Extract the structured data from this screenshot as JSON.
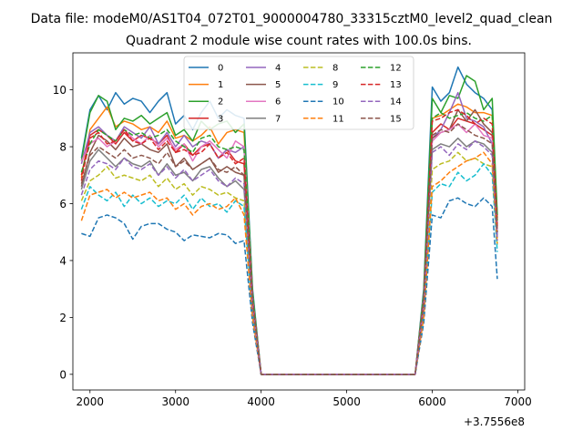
{
  "figure": {
    "suptitle": "Data file: modeM0/AS1T04_072T01_9000004780_33315cztM0_level2_quad_clean",
    "title": "Quadrant 2 module wise count rates with 100.0s bins.",
    "offset_label": "+3.7556e8"
  },
  "chart_data": {
    "type": "line",
    "title": "Quadrant 2 module wise count rates with 100.0s bins.",
    "xlabel": "",
    "ylabel": "",
    "x_offset": 375560000,
    "xlim": [
      1800,
      7080
    ],
    "ylim": [
      -0.55,
      11.3
    ],
    "xticks": [
      2000,
      3000,
      4000,
      5000,
      6000,
      7000
    ],
    "yticks": [
      0,
      2,
      4,
      6,
      8,
      10
    ],
    "grid": false,
    "legend": {
      "placement": "top-center",
      "ncol": 4
    },
    "x": [
      1900,
      2000,
      2100,
      2200,
      2300,
      2400,
      2500,
      2600,
      2700,
      2800,
      2900,
      3000,
      3100,
      3200,
      3300,
      3400,
      3500,
      3600,
      3700,
      3800,
      3900,
      4000,
      4100,
      4200,
      4300,
      4400,
      4500,
      4600,
      4700,
      4800,
      4900,
      5000,
      5100,
      5200,
      5300,
      5400,
      5500,
      5600,
      5700,
      5800,
      5900,
      6000,
      6100,
      6200,
      6300,
      6400,
      6500,
      6600,
      6700,
      6760
    ],
    "series": [
      {
        "name": "0",
        "color": "#1f77b4",
        "dash": "solid",
        "values": [
          7.6,
          9.3,
          9.8,
          9.3,
          9.9,
          9.5,
          9.7,
          9.6,
          9.2,
          9.6,
          9.9,
          8.8,
          9.1,
          8.6,
          9.2,
          9.6,
          9.0,
          9.3,
          9.1,
          9.0,
          3.0,
          0,
          0,
          0,
          0,
          0,
          0,
          0,
          0,
          0,
          0,
          0,
          0,
          0,
          0,
          0,
          0,
          0,
          0,
          0,
          3.0,
          10.1,
          9.6,
          9.9,
          10.8,
          10.2,
          9.9,
          9.7,
          9.3,
          5.5
        ]
      },
      {
        "name": "1",
        "color": "#ff7f0e",
        "dash": "solid",
        "values": [
          6.9,
          8.6,
          9.0,
          9.4,
          8.7,
          8.9,
          8.8,
          8.6,
          8.7,
          8.5,
          8.9,
          8.3,
          8.4,
          8.2,
          8.4,
          8.7,
          8.1,
          8.5,
          8.6,
          8.5,
          2.8,
          0,
          0,
          0,
          0,
          0,
          0,
          0,
          0,
          0,
          0,
          0,
          0,
          0,
          0,
          0,
          0,
          0,
          0,
          0,
          2.8,
          9.0,
          9.1,
          9.3,
          9.5,
          9.4,
          9.2,
          9.2,
          9.1,
          5.4
        ]
      },
      {
        "name": "2",
        "color": "#2ca02c",
        "dash": "solid",
        "values": [
          7.5,
          9.2,
          9.8,
          9.6,
          8.6,
          9.0,
          8.9,
          9.1,
          8.8,
          9.0,
          9.2,
          8.4,
          8.6,
          8.2,
          8.9,
          8.6,
          8.8,
          8.9,
          8.5,
          8.8,
          2.9,
          0,
          0,
          0,
          0,
          0,
          0,
          0,
          0,
          0,
          0,
          0,
          0,
          0,
          0,
          0,
          0,
          0,
          0,
          0,
          2.9,
          9.7,
          9.2,
          9.8,
          9.7,
          10.5,
          10.3,
          9.3,
          9.7,
          5.6
        ]
      },
      {
        "name": "3",
        "color": "#d62728",
        "dash": "solid",
        "values": [
          7.0,
          8.4,
          8.6,
          8.4,
          8.1,
          8.5,
          8.2,
          8.4,
          8.3,
          8.1,
          8.4,
          7.8,
          8.1,
          7.7,
          8.0,
          8.1,
          7.6,
          7.9,
          7.5,
          7.4,
          2.6,
          0,
          0,
          0,
          0,
          0,
          0,
          0,
          0,
          0,
          0,
          0,
          0,
          0,
          0,
          0,
          0,
          0,
          0,
          0,
          2.6,
          8.5,
          8.8,
          8.6,
          9.0,
          8.9,
          8.8,
          8.6,
          8.4,
          5.1
        ]
      },
      {
        "name": "4",
        "color": "#9467bd",
        "dash": "solid",
        "values": [
          7.4,
          8.5,
          8.7,
          8.4,
          8.2,
          8.7,
          8.5,
          8.3,
          8.7,
          8.1,
          8.5,
          8.0,
          8.4,
          8.0,
          8.2,
          8.1,
          7.6,
          7.9,
          7.8,
          8.0,
          2.7,
          0,
          0,
          0,
          0,
          0,
          0,
          0,
          0,
          0,
          0,
          0,
          0,
          0,
          0,
          0,
          0,
          0,
          0,
          0,
          2.7,
          8.3,
          8.6,
          9.2,
          9.9,
          9.0,
          8.9,
          8.7,
          8.1,
          4.9
        ]
      },
      {
        "name": "5",
        "color": "#8c564b",
        "dash": "solid",
        "values": [
          6.6,
          7.8,
          8.4,
          8.2,
          7.9,
          8.3,
          8.0,
          8.1,
          7.9,
          7.8,
          8.1,
          7.3,
          7.6,
          7.2,
          7.4,
          7.6,
          7.1,
          7.3,
          7.1,
          7.0,
          2.5,
          0,
          0,
          0,
          0,
          0,
          0,
          0,
          0,
          0,
          0,
          0,
          0,
          0,
          0,
          0,
          0,
          0,
          0,
          0,
          2.5,
          8.3,
          8.5,
          8.6,
          9.3,
          8.9,
          9.3,
          8.8,
          8.5,
          5.0
        ]
      },
      {
        "name": "6",
        "color": "#e377c2",
        "dash": "solid",
        "values": [
          7.5,
          8.1,
          8.3,
          8.0,
          8.2,
          8.6,
          8.3,
          8.1,
          8.4,
          8.0,
          8.3,
          7.9,
          8.1,
          7.5,
          8.0,
          8.2,
          7.9,
          7.6,
          8.2,
          8.0,
          2.7,
          0,
          0,
          0,
          0,
          0,
          0,
          0,
          0,
          0,
          0,
          0,
          0,
          0,
          0,
          0,
          0,
          0,
          0,
          0,
          2.7,
          8.2,
          8.5,
          8.6,
          8.8,
          8.5,
          8.8,
          8.4,
          8.3,
          5.0
        ]
      },
      {
        "name": "7",
        "color": "#7f7f7f",
        "dash": "solid",
        "values": [
          6.5,
          7.5,
          7.9,
          7.6,
          7.3,
          7.6,
          7.4,
          7.3,
          7.5,
          7.0,
          7.4,
          7.0,
          7.1,
          6.8,
          7.2,
          7.3,
          6.9,
          6.6,
          6.8,
          6.5,
          2.4,
          0,
          0,
          0,
          0,
          0,
          0,
          0,
          0,
          0,
          0,
          0,
          0,
          0,
          0,
          0,
          0,
          0,
          0,
          0,
          2.4,
          7.9,
          8.1,
          8.0,
          8.3,
          8.0,
          8.2,
          8.1,
          7.8,
          4.8
        ]
      },
      {
        "name": "8",
        "color": "#bcbd22",
        "dash": "dashed",
        "values": [
          6.1,
          6.8,
          7.0,
          7.3,
          6.9,
          7.0,
          6.9,
          6.8,
          7.0,
          6.6,
          6.9,
          6.5,
          6.7,
          6.3,
          6.6,
          6.5,
          6.3,
          6.4,
          6.2,
          6.1,
          2.2,
          0,
          0,
          0,
          0,
          0,
          0,
          0,
          0,
          0,
          0,
          0,
          0,
          0,
          0,
          0,
          0,
          0,
          0,
          0,
          2.2,
          7.2,
          7.4,
          7.5,
          7.8,
          7.5,
          7.6,
          7.4,
          7.3,
          4.5
        ]
      },
      {
        "name": "9",
        "color": "#17becf",
        "dash": "dashed",
        "values": [
          5.8,
          6.6,
          6.3,
          6.1,
          6.4,
          5.9,
          6.3,
          6.0,
          6.2,
          5.9,
          6.1,
          6.0,
          6.3,
          5.8,
          6.2,
          5.9,
          6.0,
          5.7,
          6.1,
          5.9,
          2.1,
          0,
          0,
          0,
          0,
          0,
          0,
          0,
          0,
          0,
          0,
          0,
          0,
          0,
          0,
          0,
          0,
          0,
          0,
          0,
          2.1,
          6.4,
          6.7,
          6.6,
          7.1,
          6.8,
          7.0,
          7.4,
          7.0,
          4.3
        ]
      },
      {
        "name": "10",
        "color": "#1f77b4",
        "dash": "dashed",
        "values": [
          4.95,
          4.85,
          5.5,
          5.6,
          5.5,
          5.3,
          4.75,
          5.2,
          5.3,
          5.3,
          5.1,
          5.0,
          4.7,
          4.9,
          4.85,
          4.8,
          4.95,
          4.9,
          4.6,
          4.7,
          1.8,
          0,
          0,
          0,
          0,
          0,
          0,
          0,
          0,
          0,
          0,
          0,
          0,
          0,
          0,
          0,
          0,
          0,
          0,
          0,
          1.8,
          5.6,
          5.5,
          6.1,
          6.2,
          6.0,
          5.9,
          6.2,
          5.9,
          3.35
        ]
      },
      {
        "name": "11",
        "color": "#ff7f0e",
        "dash": "dashed",
        "values": [
          5.4,
          6.3,
          6.4,
          6.5,
          6.2,
          6.4,
          6.2,
          6.3,
          6.4,
          6.1,
          6.2,
          5.8,
          6.0,
          5.6,
          5.9,
          6.0,
          5.8,
          5.9,
          6.2,
          5.6,
          2.0,
          0,
          0,
          0,
          0,
          0,
          0,
          0,
          0,
          0,
          0,
          0,
          0,
          0,
          0,
          0,
          0,
          0,
          0,
          0,
          2.0,
          6.6,
          6.8,
          7.1,
          7.3,
          7.5,
          7.6,
          7.8,
          7.4,
          4.6
        ]
      },
      {
        "name": "12",
        "color": "#2ca02c",
        "dash": "dashed",
        "values": [
          7.1,
          8.1,
          8.6,
          8.4,
          8.2,
          8.6,
          8.4,
          8.5,
          8.3,
          8.4,
          8.6,
          8.2,
          8.0,
          7.8,
          8.3,
          8.4,
          8.0,
          7.9,
          8.0,
          7.9,
          2.7,
          0,
          0,
          0,
          0,
          0,
          0,
          0,
          0,
          0,
          0,
          0,
          0,
          0,
          0,
          0,
          0,
          0,
          0,
          0,
          2.7,
          9.0,
          9.2,
          9.0,
          9.1,
          9.2,
          9.0,
          8.9,
          9.1,
          5.3
        ]
      },
      {
        "name": "13",
        "color": "#d62728",
        "dash": "dashed",
        "values": [
          6.8,
          8.3,
          8.5,
          8.1,
          8.2,
          8.6,
          8.2,
          8.1,
          8.3,
          7.9,
          8.2,
          7.8,
          7.9,
          7.7,
          7.8,
          8.1,
          7.6,
          7.8,
          7.4,
          7.6,
          2.6,
          0,
          0,
          0,
          0,
          0,
          0,
          0,
          0,
          0,
          0,
          0,
          0,
          0,
          0,
          0,
          0,
          0,
          0,
          0,
          2.6,
          8.9,
          9.0,
          9.2,
          9.3,
          9.1,
          8.8,
          9.0,
          8.8,
          5.2
        ]
      },
      {
        "name": "14",
        "color": "#9467bd",
        "dash": "dashed",
        "values": [
          6.3,
          7.2,
          7.5,
          7.4,
          7.2,
          7.6,
          7.3,
          7.2,
          7.4,
          7.0,
          7.3,
          6.9,
          7.2,
          6.8,
          7.0,
          7.2,
          6.8,
          6.6,
          6.9,
          6.7,
          2.4,
          0,
          0,
          0,
          0,
          0,
          0,
          0,
          0,
          0,
          0,
          0,
          0,
          0,
          0,
          0,
          0,
          0,
          0,
          0,
          2.4,
          7.8,
          8.0,
          7.7,
          8.1,
          7.9,
          8.2,
          8.0,
          7.7,
          4.7
        ]
      },
      {
        "name": "15",
        "color": "#8c564b",
        "dash": "dashed",
        "values": [
          6.7,
          7.7,
          8.0,
          7.8,
          7.6,
          7.9,
          7.6,
          7.7,
          7.6,
          7.4,
          7.8,
          7.3,
          7.5,
          7.2,
          7.4,
          7.6,
          7.2,
          7.1,
          7.3,
          7.0,
          2.5,
          0,
          0,
          0,
          0,
          0,
          0,
          0,
          0,
          0,
          0,
          0,
          0,
          0,
          0,
          0,
          0,
          0,
          0,
          0,
          2.5,
          8.4,
          8.6,
          8.5,
          8.8,
          8.6,
          8.4,
          8.3,
          8.1,
          5.0
        ]
      }
    ]
  }
}
